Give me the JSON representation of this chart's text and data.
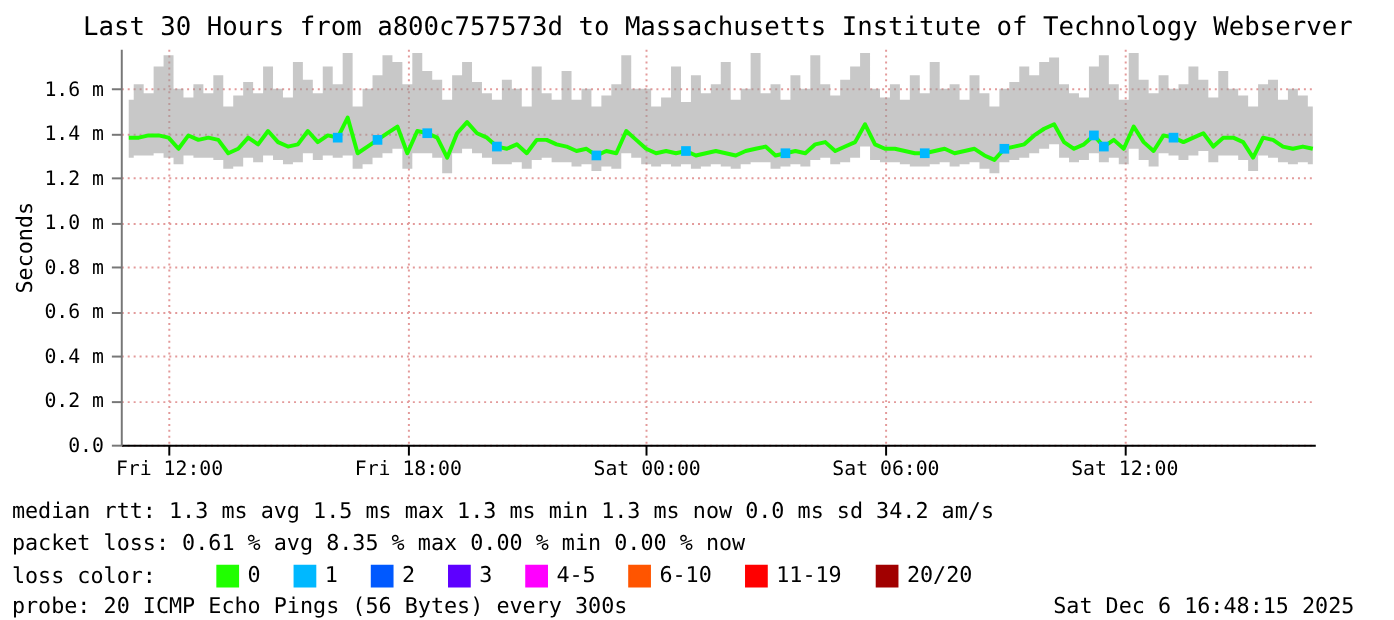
{
  "chart_data": {
    "type": "line",
    "title": "Last 30 Hours from a800c757573d to Massachusetts Institute of Technology Webserver",
    "ylabel": "Seconds",
    "legend_title": "loss color:",
    "legend": "bottom",
    "grid": true,
    "xlim": [
      "2025-12-05T10:48",
      "2025-12-06T16:48"
    ],
    "xticks": [
      {
        "value": "2025-12-05T12:00",
        "label": "Fri 12:00"
      },
      {
        "value": "2025-12-05T18:00",
        "label": "Fri 18:00"
      },
      {
        "value": "2025-12-06T00:00",
        "label": "Sat 00:00"
      },
      {
        "value": "2025-12-06T06:00",
        "label": "Sat 06:00"
      },
      {
        "value": "2025-12-06T12:00",
        "label": "Sat 12:00"
      }
    ],
    "ylim": [
      0,
      1.78
    ],
    "yticks": [
      {
        "value": 0,
        "label": "0.0"
      },
      {
        "value": 0.2,
        "label": "0.2 m"
      },
      {
        "value": 0.4,
        "label": "0.4 m"
      },
      {
        "value": 0.6,
        "label": "0.6 m"
      },
      {
        "value": 0.8,
        "label": "0.8 m"
      },
      {
        "value": 1.0,
        "label": "1.0 m"
      },
      {
        "value": 1.2,
        "label": "1.2 m"
      },
      {
        "value": 1.4,
        "label": "1.4 m"
      },
      {
        "value": 1.6,
        "label": "1.6 m"
      }
    ],
    "annotations": [
      "median rtt:  1.3 ms avg  1.5 ms max  1.3 ms min  1.3 ms now  0.0 ms sd  34.2   am/s",
      "packet loss: 0.61 % avg  8.35 % max  0.00 % min  0.00 % now",
      "probe:       20 ICMP Echo Pings (56 Bytes) every 300s",
      "Sat Dec  6 16:48:15 2025"
    ],
    "series": [
      {
        "name": "0",
        "color": "#20ff00",
        "type": "line",
        "x": [
          "2025-12-05T11:00",
          "2025-12-05T11:15",
          "2025-12-05T11:30",
          "2025-12-05T11:45",
          "2025-12-05T12:00",
          "2025-12-05T12:15",
          "2025-12-05T12:30",
          "2025-12-05T12:45",
          "2025-12-05T13:00",
          "2025-12-05T13:15",
          "2025-12-05T13:30",
          "2025-12-05T13:45",
          "2025-12-05T14:00",
          "2025-12-05T14:15",
          "2025-12-05T14:30",
          "2025-12-05T14:45",
          "2025-12-05T15:00",
          "2025-12-05T15:15",
          "2025-12-05T15:30",
          "2025-12-05T15:45",
          "2025-12-05T16:00",
          "2025-12-05T16:15",
          "2025-12-05T16:30",
          "2025-12-05T16:45",
          "2025-12-05T17:00",
          "2025-12-05T17:15",
          "2025-12-05T17:30",
          "2025-12-05T17:45",
          "2025-12-05T18:00",
          "2025-12-05T18:15",
          "2025-12-05T18:30",
          "2025-12-05T18:45",
          "2025-12-05T19:00",
          "2025-12-05T19:15",
          "2025-12-05T19:30",
          "2025-12-05T19:45",
          "2025-12-05T20:00",
          "2025-12-05T20:15",
          "2025-12-05T20:30",
          "2025-12-05T20:45",
          "2025-12-05T21:00",
          "2025-12-05T21:15",
          "2025-12-05T21:30",
          "2025-12-05T21:45",
          "2025-12-05T22:00",
          "2025-12-05T22:15",
          "2025-12-05T22:30",
          "2025-12-05T22:45",
          "2025-12-05T23:00",
          "2025-12-05T23:15",
          "2025-12-05T23:30",
          "2025-12-05T23:45",
          "2025-12-06T00:00",
          "2025-12-06T00:15",
          "2025-12-06T00:30",
          "2025-12-06T00:45",
          "2025-12-06T01:00",
          "2025-12-06T01:15",
          "2025-12-06T01:30",
          "2025-12-06T01:45",
          "2025-12-06T02:00",
          "2025-12-06T02:15",
          "2025-12-06T02:30",
          "2025-12-06T02:45",
          "2025-12-06T03:00",
          "2025-12-06T03:15",
          "2025-12-06T03:30",
          "2025-12-06T03:45",
          "2025-12-06T04:00",
          "2025-12-06T04:15",
          "2025-12-06T04:30",
          "2025-12-06T04:45",
          "2025-12-06T05:00",
          "2025-12-06T05:15",
          "2025-12-06T05:30",
          "2025-12-06T05:45",
          "2025-12-06T06:00",
          "2025-12-06T06:15",
          "2025-12-06T06:30",
          "2025-12-06T06:45",
          "2025-12-06T07:00",
          "2025-12-06T07:15",
          "2025-12-06T07:30",
          "2025-12-06T07:45",
          "2025-12-06T08:00",
          "2025-12-06T08:15",
          "2025-12-06T08:30",
          "2025-12-06T08:45",
          "2025-12-06T09:00",
          "2025-12-06T09:15",
          "2025-12-06T09:30",
          "2025-12-06T09:45",
          "2025-12-06T10:00",
          "2025-12-06T10:15",
          "2025-12-06T10:30",
          "2025-12-06T10:45",
          "2025-12-06T11:00",
          "2025-12-06T11:15",
          "2025-12-06T11:30",
          "2025-12-06T11:45",
          "2025-12-06T12:00",
          "2025-12-06T12:15",
          "2025-12-06T12:30",
          "2025-12-06T12:45",
          "2025-12-06T13:00",
          "2025-12-06T13:15",
          "2025-12-06T13:30",
          "2025-12-06T13:45",
          "2025-12-06T14:00",
          "2025-12-06T14:15",
          "2025-12-06T14:30",
          "2025-12-06T14:45",
          "2025-12-06T15:00",
          "2025-12-06T15:15",
          "2025-12-06T15:30",
          "2025-12-06T15:45",
          "2025-12-06T16:00",
          "2025-12-06T16:15",
          "2025-12-06T16:30",
          "2025-12-06T16:45"
        ],
        "values": [
          1.38,
          1.38,
          1.39,
          1.39,
          1.38,
          1.33,
          1.39,
          1.37,
          1.38,
          1.37,
          1.31,
          1.33,
          1.38,
          1.35,
          1.41,
          1.36,
          1.34,
          1.35,
          1.41,
          1.36,
          1.39,
          1.38,
          1.47,
          1.31,
          1.34,
          1.37,
          1.4,
          1.43,
          1.31,
          1.41,
          1.4,
          1.38,
          1.29,
          1.4,
          1.45,
          1.4,
          1.38,
          1.34,
          1.33,
          1.35,
          1.31,
          1.37,
          1.37,
          1.35,
          1.34,
          1.32,
          1.33,
          1.3,
          1.32,
          1.31,
          1.41,
          1.37,
          1.33,
          1.31,
          1.32,
          1.31,
          1.32,
          1.3,
          1.31,
          1.32,
          1.31,
          1.3,
          1.32,
          1.33,
          1.34,
          1.3,
          1.31,
          1.32,
          1.31,
          1.35,
          1.36,
          1.32,
          1.34,
          1.36,
          1.44,
          1.35,
          1.33,
          1.33,
          1.32,
          1.31,
          1.31,
          1.32,
          1.33,
          1.31,
          1.32,
          1.33,
          1.3,
          1.28,
          1.33,
          1.34,
          1.35,
          1.39,
          1.42,
          1.44,
          1.36,
          1.33,
          1.35,
          1.39,
          1.34,
          1.37,
          1.33,
          1.43,
          1.36,
          1.32,
          1.39,
          1.38,
          1.36,
          1.38,
          1.4,
          1.34,
          1.38,
          1.38,
          1.36,
          1.29,
          1.38,
          1.37,
          1.34,
          1.33,
          1.34,
          1.33
        ],
        "lower": [
          1.29,
          1.3,
          1.3,
          1.31,
          1.29,
          1.26,
          1.3,
          1.29,
          1.29,
          1.28,
          1.24,
          1.25,
          1.29,
          1.27,
          1.3,
          1.28,
          1.26,
          1.27,
          1.31,
          1.28,
          1.3,
          1.29,
          1.3,
          1.24,
          1.26,
          1.29,
          1.31,
          1.33,
          1.24,
          1.31,
          1.31,
          1.29,
          1.22,
          1.31,
          1.33,
          1.31,
          1.29,
          1.26,
          1.26,
          1.27,
          1.24,
          1.28,
          1.29,
          1.27,
          1.27,
          1.25,
          1.26,
          1.23,
          1.25,
          1.24,
          1.31,
          1.29,
          1.26,
          1.25,
          1.26,
          1.25,
          1.26,
          1.24,
          1.25,
          1.26,
          1.25,
          1.24,
          1.26,
          1.27,
          1.27,
          1.24,
          1.25,
          1.26,
          1.25,
          1.28,
          1.29,
          1.26,
          1.27,
          1.29,
          1.34,
          1.28,
          1.27,
          1.27,
          1.26,
          1.25,
          1.25,
          1.26,
          1.27,
          1.25,
          1.26,
          1.27,
          1.24,
          1.22,
          1.27,
          1.28,
          1.29,
          1.31,
          1.33,
          1.35,
          1.29,
          1.27,
          1.28,
          1.31,
          1.27,
          1.29,
          1.26,
          1.33,
          1.28,
          1.25,
          1.31,
          1.3,
          1.28,
          1.3,
          1.32,
          1.27,
          1.3,
          1.3,
          1.28,
          1.23,
          1.3,
          1.29,
          1.27,
          1.26,
          1.27,
          1.26
        ],
        "upper": [
          1.55,
          1.62,
          1.58,
          1.7,
          1.75,
          1.6,
          1.56,
          1.62,
          1.58,
          1.66,
          1.52,
          1.57,
          1.63,
          1.58,
          1.7,
          1.6,
          1.56,
          1.72,
          1.64,
          1.58,
          1.7,
          1.62,
          1.76,
          1.52,
          1.6,
          1.66,
          1.75,
          1.72,
          1.62,
          1.76,
          1.68,
          1.64,
          1.55,
          1.66,
          1.72,
          1.63,
          1.58,
          1.55,
          1.64,
          1.6,
          1.52,
          1.7,
          1.58,
          1.55,
          1.68,
          1.55,
          1.6,
          1.52,
          1.57,
          1.62,
          1.75,
          1.6,
          1.6,
          1.52,
          1.56,
          1.7,
          1.54,
          1.66,
          1.58,
          1.62,
          1.72,
          1.55,
          1.6,
          1.76,
          1.58,
          1.62,
          1.55,
          1.66,
          1.6,
          1.75,
          1.62,
          1.57,
          1.64,
          1.7,
          1.76,
          1.6,
          1.56,
          1.62,
          1.55,
          1.66,
          1.58,
          1.72,
          1.6,
          1.62,
          1.55,
          1.66,
          1.58,
          1.52,
          1.6,
          1.63,
          1.7,
          1.66,
          1.72,
          1.74,
          1.62,
          1.58,
          1.56,
          1.7,
          1.75,
          1.62,
          1.55,
          1.76,
          1.64,
          1.58,
          1.66,
          1.6,
          1.62,
          1.7,
          1.64,
          1.56,
          1.68,
          1.6,
          1.57,
          1.52,
          1.62,
          1.64,
          1.55,
          1.6,
          1.57,
          1.52
        ]
      },
      {
        "name": "1",
        "color": "#00b8ff",
        "type": "scatter",
        "marker": "square",
        "x": [
          "2025-12-05T16:15",
          "2025-12-05T17:15",
          "2025-12-05T18:30",
          "2025-12-05T20:15",
          "2025-12-05T22:45",
          "2025-12-06T01:00",
          "2025-12-06T03:30",
          "2025-12-06T07:00",
          "2025-12-06T09:00",
          "2025-12-06T11:15",
          "2025-12-06T11:30",
          "2025-12-06T13:15"
        ],
        "values": [
          1.38,
          1.37,
          1.4,
          1.34,
          1.3,
          1.32,
          1.31,
          1.31,
          1.33,
          1.39,
          1.34,
          1.38
        ]
      },
      {
        "name": "2",
        "color": "#0059ff",
        "type": "scatter",
        "marker": "square"
      },
      {
        "name": "3",
        "color": "#5e00ff",
        "type": "scatter",
        "marker": "square"
      },
      {
        "name": "4-5",
        "color": "#ff00ff",
        "type": "scatter",
        "marker": "square"
      },
      {
        "name": "6-10",
        "color": "#ff5500",
        "type": "scatter",
        "marker": "square"
      },
      {
        "name": "11-19",
        "color": "#ff0000",
        "type": "scatter",
        "marker": "square"
      },
      {
        "name": "20/20",
        "color": "#a10000",
        "type": "scatter",
        "marker": "square"
      }
    ]
  }
}
